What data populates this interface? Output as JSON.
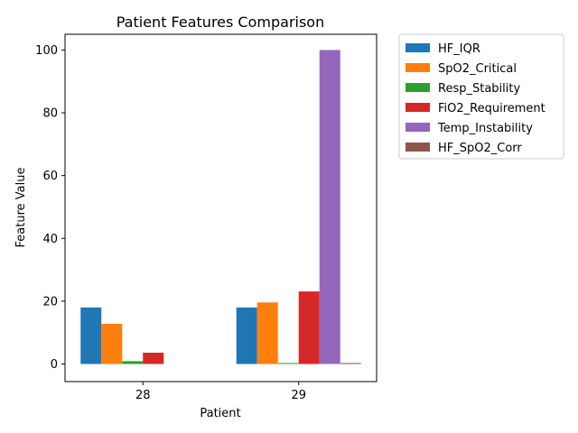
{
  "chart_data": {
    "type": "bar",
    "title": "Patient Features Comparison",
    "xlabel": "Patient",
    "ylabel": "Feature Value",
    "categories": [
      "28",
      "29"
    ],
    "ylim": [
      -5.6,
      105
    ],
    "yticks": [
      0,
      20,
      40,
      60,
      80,
      100
    ],
    "grid": false,
    "legend_position": "outside-right",
    "series": [
      {
        "name": "HF_IQR",
        "color": "#1f77b4",
        "values": [
          18.0,
          18.0
        ]
      },
      {
        "name": "SpO2_Critical",
        "color": "#ff7f0e",
        "values": [
          12.8,
          19.6
        ]
      },
      {
        "name": "Resp_Stability",
        "color": "#2ca02c",
        "values": [
          0.9,
          0.3
        ]
      },
      {
        "name": "FiO2_Requirement",
        "color": "#d62728",
        "values": [
          3.6,
          23.1
        ]
      },
      {
        "name": "Temp_Instability",
        "color": "#9467bd",
        "values": [
          0.0,
          100.0
        ]
      },
      {
        "name": "HF_SpO2_Corr",
        "color": "#8c564b",
        "values": [
          0.0,
          0.3
        ]
      }
    ]
  }
}
